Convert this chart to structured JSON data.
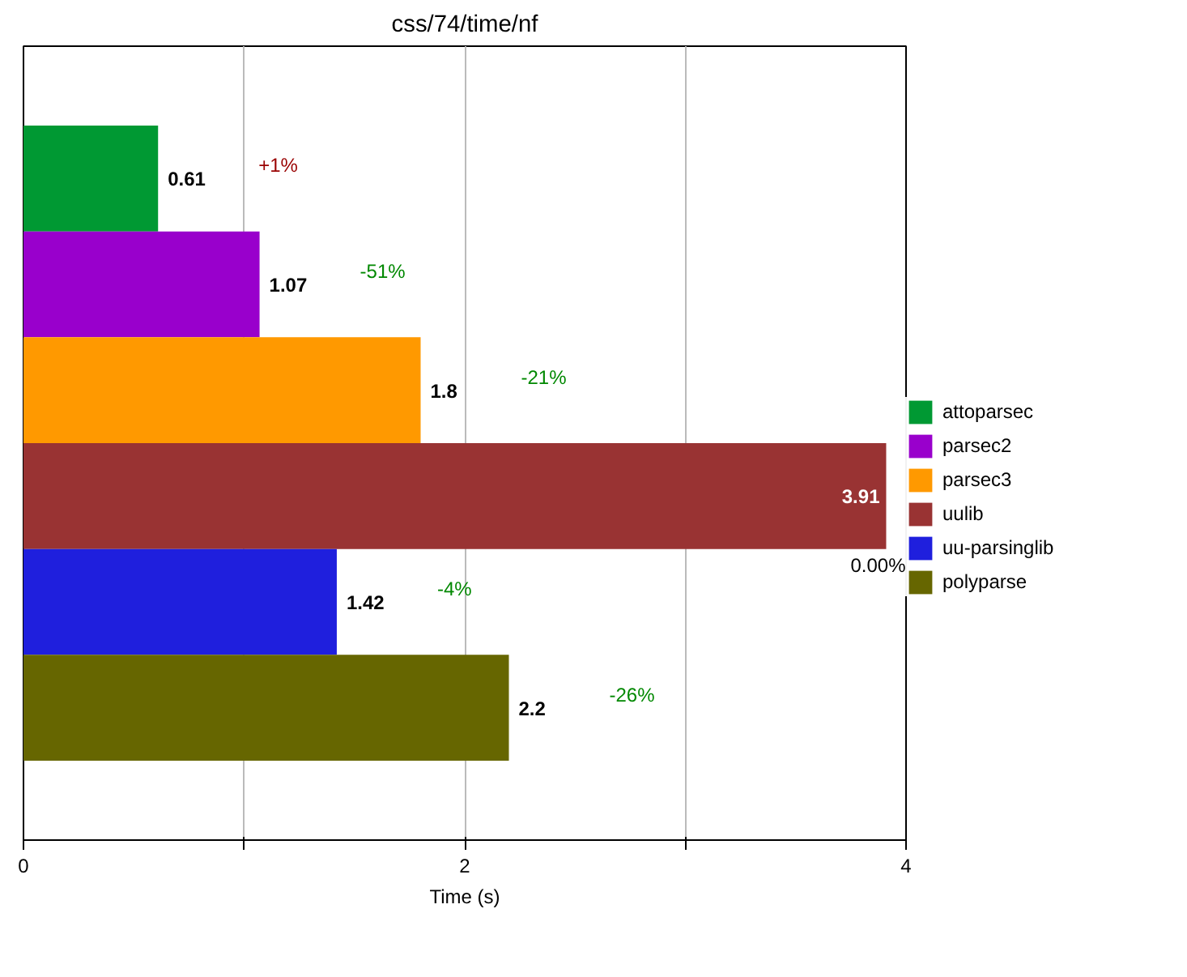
{
  "chart_data": {
    "type": "bar",
    "orientation": "horizontal",
    "title": "css/74/time/nf",
    "xlabel": "Time (s)",
    "categories": [
      null
    ],
    "series": [
      {
        "name": "attoparsec",
        "color": "#009933",
        "values": [
          0.61
        ]
      },
      {
        "name": "parsec2",
        "color": "#9900cc",
        "values": [
          1.07
        ]
      },
      {
        "name": "parsec3",
        "color": "#ff9900",
        "values": [
          1.8
        ]
      },
      {
        "name": "uulib",
        "color": "#993333",
        "values": [
          3.91
        ]
      },
      {
        "name": "uu-parsinglib",
        "color": "#1f1fdd",
        "values": [
          1.42
        ]
      },
      {
        "name": "polyparse",
        "color": "#666600",
        "values": [
          2.2
        ]
      }
    ],
    "data_labels": true,
    "annotations": [
      "+1%",
      "-51%",
      "-21%",
      "0.00%",
      "-4%",
      "-26%"
    ],
    "xlim": [
      0,
      4
    ],
    "xticks": [
      0,
      {
        "value": 1,
        "label": null
      },
      2,
      {
        "value": 3,
        "label": null
      },
      4
    ],
    "grid": "x",
    "legend": "right",
    "tick_labels": "x"
  }
}
